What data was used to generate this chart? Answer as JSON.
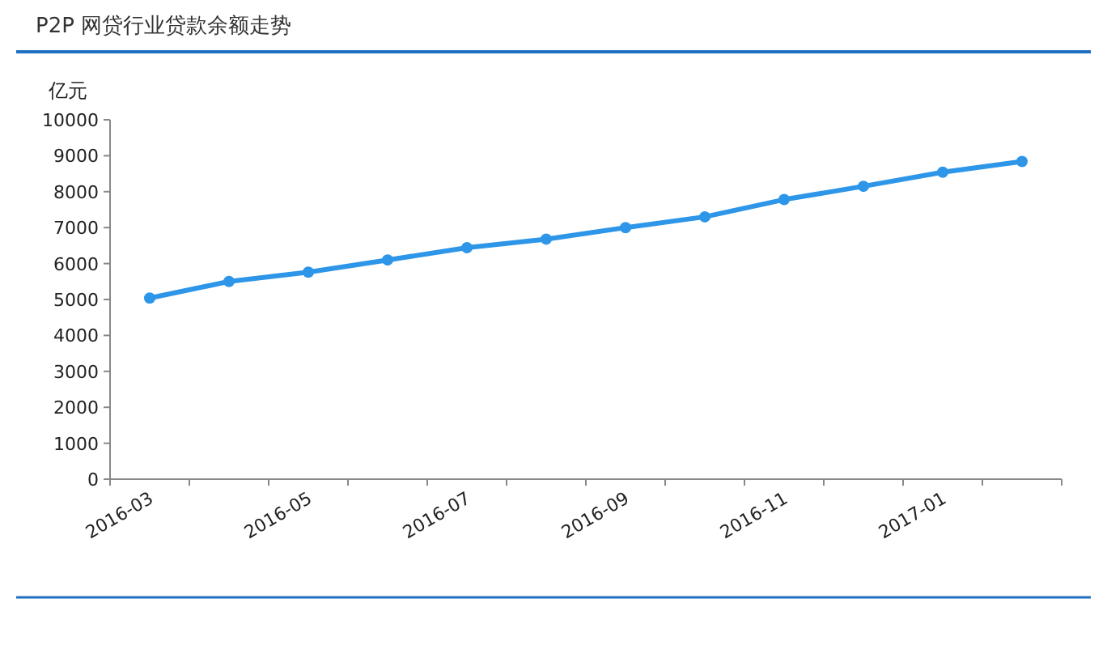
{
  "chart_data": {
    "type": "line",
    "title": "P2P 网贷行业贷款余额走势",
    "ylabel": "亿元",
    "categories": [
      "2016-03",
      null,
      "2016-05",
      null,
      "2016-07",
      null,
      "2016-09",
      null,
      "2016-11",
      null,
      "2017-01",
      null
    ],
    "series": [
      {
        "color": "#2e96e8",
        "values": [
          5040,
          5500,
          5760,
          6100,
          6440,
          6680,
          7000,
          7300,
          7780,
          8150,
          8540,
          8840
        ]
      }
    ],
    "ylim": [
      0,
      10000
    ],
    "yticks": [
      0,
      1000,
      2000,
      3000,
      4000,
      5000,
      6000,
      7000,
      8000,
      9000,
      10000
    ],
    "marker": "circle",
    "line_style": "solid",
    "grid": false
  }
}
